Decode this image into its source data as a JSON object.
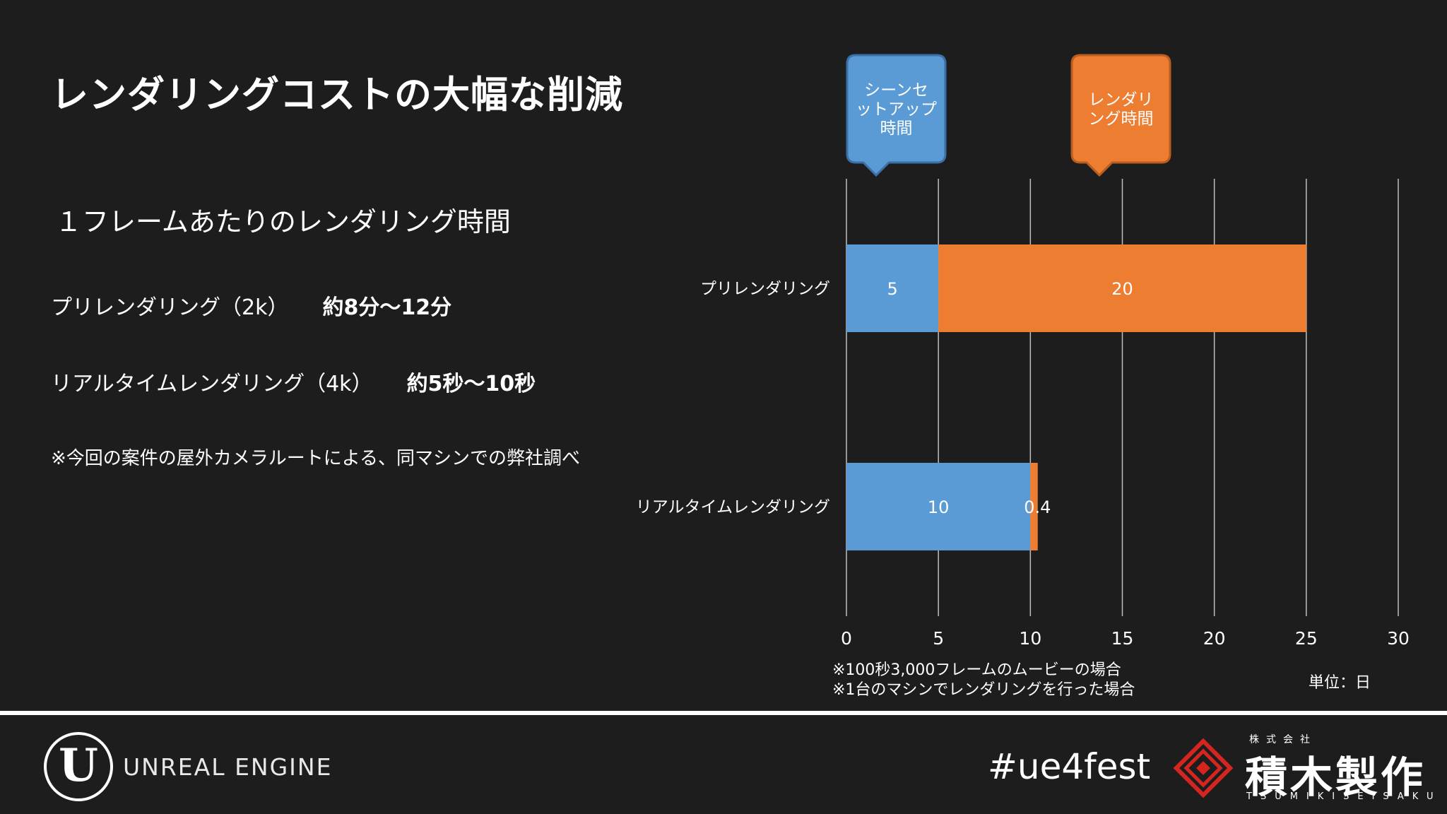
{
  "slide": {
    "title": "レンダリングコストの大幅な削減",
    "subtitle": "１フレームあたりのレンダリング時間",
    "rows": [
      {
        "label": "プリレンダリング（2k）",
        "value": "約8分〜12分"
      },
      {
        "label": "リアルタイムレンダリング（4k）",
        "value": "約5秒〜10秒"
      }
    ],
    "note": "※今回の案件の屋外カメラルートによる、同マシンでの弊社調べ"
  },
  "chart_data": {
    "type": "bar",
    "orientation": "horizontal",
    "stacked": true,
    "categories": [
      "プリレンダリング",
      "リアルタイムレンダリング"
    ],
    "series": [
      {
        "name": "シーンセットアップ時間",
        "values": [
          5,
          10
        ],
        "color": "#5b9bd5"
      },
      {
        "name": "レンダリング時間",
        "values": [
          20,
          0.4
        ],
        "color": "#ed7d31"
      }
    ],
    "xlim": [
      0,
      30
    ],
    "xticks": [
      0,
      5,
      10,
      15,
      20,
      25,
      30
    ],
    "grid": true,
    "legend": "callouts above chart",
    "callouts": [
      {
        "lines": [
          "シーンセ",
          "ットアップ",
          "時間"
        ]
      },
      {
        "lines": [
          "レンダリ",
          "ング時間"
        ]
      }
    ],
    "footnotes": [
      "※100秒3,000フレームのムービーの場合",
      "※1台のマシンでレンダリングを行った場合"
    ],
    "unit_label": "単位：日"
  },
  "footer": {
    "engine_logo": "U",
    "engine_name": "UNREAL ENGINE",
    "hashtag": "#ue4fest",
    "company_small": "株式会社",
    "company_name": "積木製作",
    "company_roman": "TSUMIKISEISAKU"
  },
  "colors": {
    "background": "#1d1d1d",
    "blue": "#5b9bd5",
    "orange": "#ed7d31",
    "text": "#ffffff"
  }
}
